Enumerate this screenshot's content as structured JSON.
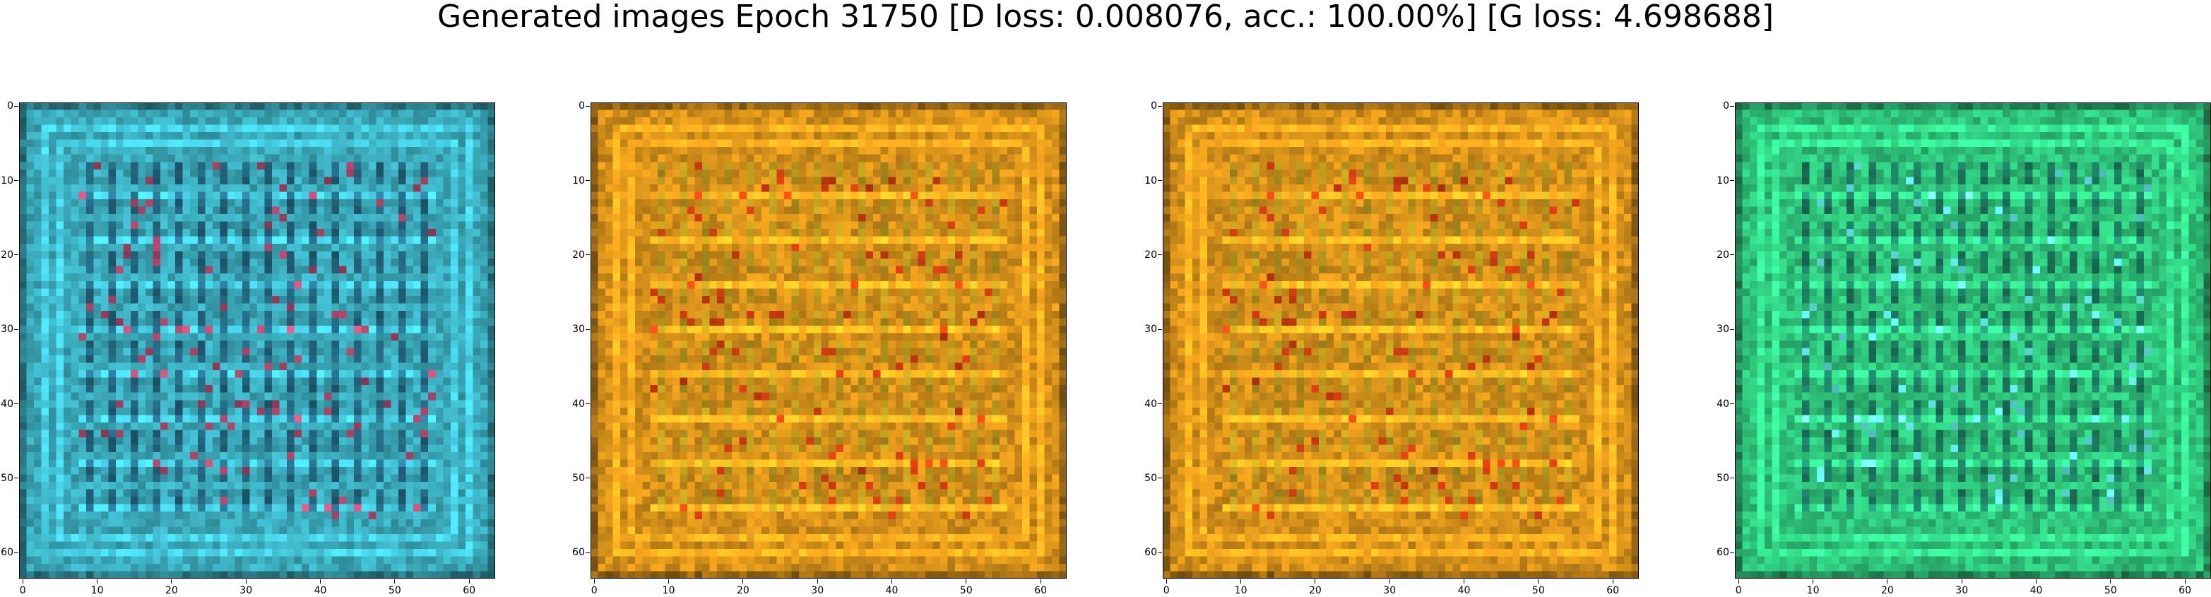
{
  "figure": {
    "title": "Generated images Epoch 31750 [D loss: 0.008076, acc.: 100.00%] [G loss: 4.698688]"
  },
  "chart_data": [
    {
      "type": "heatmap",
      "panel": 1,
      "xlim": [
        -0.5,
        63.5
      ],
      "ylim": [
        63.5,
        -0.5
      ],
      "xticks": [
        "0",
        "10",
        "20",
        "30",
        "40",
        "50",
        "60"
      ],
      "yticks": [
        "0",
        "10",
        "20",
        "30",
        "40",
        "50",
        "60"
      ],
      "base_color": "#3aa8b8",
      "accent_color": "#0a1a3a",
      "highlight_color": "#a04060",
      "grid": false
    },
    {
      "type": "heatmap",
      "panel": 2,
      "xlim": [
        -0.5,
        63.5
      ],
      "ylim": [
        63.5,
        -0.5
      ],
      "xticks": [
        "0",
        "10",
        "20",
        "30",
        "40",
        "50",
        "60"
      ],
      "yticks": [
        "0",
        "10",
        "20",
        "30",
        "40",
        "50",
        "60"
      ],
      "base_color": "#d4901a",
      "accent_color": "#9aa020",
      "highlight_color": "#c83a10",
      "grid": false
    },
    {
      "type": "heatmap",
      "panel": 3,
      "xlim": [
        -0.5,
        63.5
      ],
      "ylim": [
        63.5,
        -0.5
      ],
      "xticks": [
        "0",
        "10",
        "20",
        "30",
        "40",
        "50",
        "60"
      ],
      "yticks": [
        "0",
        "10",
        "20",
        "30",
        "40",
        "50",
        "60"
      ],
      "base_color": "#d4901a",
      "accent_color": "#9aa020",
      "highlight_color": "#c83a10",
      "grid": false
    },
    {
      "type": "heatmap",
      "panel": 4,
      "xlim": [
        -0.5,
        63.5
      ],
      "ylim": [
        63.5,
        -0.5
      ],
      "xticks": [
        "0",
        "10",
        "20",
        "30",
        "40",
        "50",
        "60"
      ],
      "yticks": [
        "0",
        "10",
        "20",
        "30",
        "40",
        "50",
        "60"
      ],
      "base_color": "#2ec27a",
      "accent_color": "#0a2a40",
      "highlight_color": "#60e0e0",
      "grid": false
    }
  ]
}
